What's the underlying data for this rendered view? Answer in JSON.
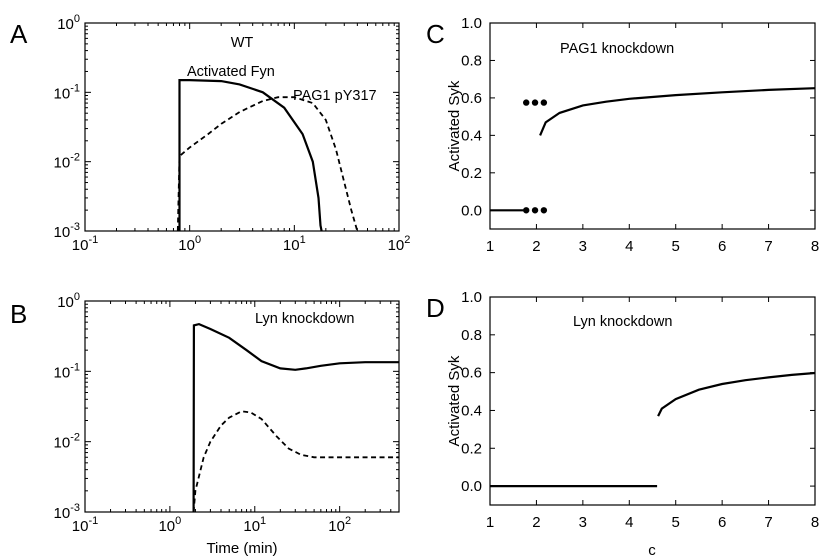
{
  "letters": [
    "A",
    "B",
    "C",
    "D"
  ],
  "x_title_left": "Time (min)",
  "x_title_right": "c",
  "chart_data": [
    {
      "id": "A",
      "type": "line",
      "title": "WT",
      "xscale": "log",
      "yscale": "log",
      "xlim": [
        0.1,
        100
      ],
      "ylim": [
        0.001,
        1
      ],
      "xtick_labels": [
        {
          "base": "10",
          "exp": "-1"
        },
        {
          "base": "10",
          "exp": "0"
        },
        {
          "base": "10",
          "exp": "1"
        },
        {
          "base": "10",
          "exp": "2"
        }
      ],
      "ytick_labels": [
        {
          "base": "10",
          "exp": "-3"
        },
        {
          "base": "10",
          "exp": "-2"
        },
        {
          "base": "10",
          "exp": "-1"
        },
        {
          "base": "10",
          "exp": "0"
        }
      ],
      "annotations": [
        "Activated Fyn",
        "PAG1 pY317"
      ],
      "series": [
        {
          "name": "Activated Fyn",
          "style": "solid",
          "x": [
            0.8,
            0.8,
            1,
            2,
            3,
            5,
            8,
            12,
            15,
            17,
            17.8,
            18.2
          ],
          "y": [
            0.001,
            0.15,
            0.15,
            0.145,
            0.13,
            0.1,
            0.06,
            0.025,
            0.01,
            0.003,
            0.0012,
            0.001
          ]
        },
        {
          "name": "PAG1 pY317",
          "style": "dashed",
          "x": [
            0.77,
            0.8,
            1,
            1.5,
            2,
            3,
            5,
            7,
            10,
            15,
            20,
            25,
            30,
            35,
            40
          ],
          "y": [
            0.001,
            0.012,
            0.016,
            0.025,
            0.035,
            0.052,
            0.075,
            0.085,
            0.085,
            0.07,
            0.04,
            0.015,
            0.005,
            0.002,
            0.001
          ]
        }
      ]
    },
    {
      "id": "B",
      "type": "line",
      "title": "Lyn knockdown",
      "xscale": "log",
      "yscale": "log",
      "xlim": [
        0.1,
        500
      ],
      "ylim": [
        0.001,
        1
      ],
      "xtick_labels": [
        {
          "base": "10",
          "exp": "-1"
        },
        {
          "base": "10",
          "exp": "0"
        },
        {
          "base": "10",
          "exp": "1"
        },
        {
          "base": "10",
          "exp": "2"
        }
      ],
      "ytick_labels": [
        {
          "base": "10",
          "exp": "-3"
        },
        {
          "base": "10",
          "exp": "-2"
        },
        {
          "base": "10",
          "exp": "-1"
        },
        {
          "base": "10",
          "exp": "0"
        }
      ],
      "xlabel": "Time (min)",
      "series": [
        {
          "style": "solid",
          "x": [
            1.9,
            1.92,
            2.2,
            3,
            5,
            8,
            12,
            20,
            30,
            40,
            60,
            100,
            200,
            500
          ],
          "y": [
            0.001,
            0.45,
            0.47,
            0.4,
            0.3,
            0.2,
            0.14,
            0.11,
            0.105,
            0.11,
            0.12,
            0.13,
            0.135,
            0.135
          ]
        },
        {
          "style": "dashed",
          "x": [
            1.9,
            2,
            2.5,
            3,
            4,
            5,
            7,
            9,
            12,
            18,
            25,
            35,
            50,
            100,
            500
          ],
          "y": [
            0.001,
            0.002,
            0.006,
            0.01,
            0.017,
            0.022,
            0.027,
            0.026,
            0.021,
            0.012,
            0.008,
            0.0065,
            0.006,
            0.006,
            0.006
          ]
        }
      ]
    },
    {
      "id": "C",
      "type": "line",
      "title": "PAG1 knockdown",
      "xscale": "linear",
      "yscale": "linear",
      "xlim": [
        1,
        8
      ],
      "ylim": [
        -0.1,
        1
      ],
      "xticks": [
        1,
        2,
        3,
        4,
        5,
        6,
        7,
        8
      ],
      "yticks": [
        0,
        0.2,
        0.4,
        0.6,
        0.8,
        1
      ],
      "ytick_labels": [
        "0.0",
        "0.2",
        "0.4",
        "0.6",
        "0.8",
        "1.0"
      ],
      "ylabel": "Activated Syk",
      "series": [
        {
          "style": "solid",
          "x": [
            1,
            1.72
          ],
          "y": [
            0,
            0
          ]
        },
        {
          "style": "solid",
          "x": [
            2.08,
            2.2,
            2.5,
            3,
            3.5,
            4,
            5,
            6,
            7,
            8
          ],
          "y": [
            0.4,
            0.47,
            0.52,
            0.56,
            0.58,
            0.595,
            0.615,
            0.63,
            0.643,
            0.652
          ]
        },
        {
          "style": "dots",
          "x": [
            1.78,
            1.97,
            2.16
          ],
          "y": [
            0.575,
            0.575,
            0.575
          ]
        },
        {
          "style": "dots",
          "x": [
            1.78,
            1.97,
            2.16
          ],
          "y": [
            0,
            0,
            0
          ]
        }
      ]
    },
    {
      "id": "D",
      "type": "line",
      "title": "Lyn knockdown",
      "xscale": "linear",
      "yscale": "linear",
      "xlim": [
        1,
        8
      ],
      "ylim": [
        -0.1,
        1
      ],
      "xticks": [
        1,
        2,
        3,
        4,
        5,
        6,
        7,
        8
      ],
      "yticks": [
        0,
        0.2,
        0.4,
        0.6,
        0.8,
        1
      ],
      "ytick_labels": [
        "0.0",
        "0.2",
        "0.4",
        "0.6",
        "0.8",
        "1.0"
      ],
      "ylabel": "Activated Syk",
      "xlabel": "c",
      "series": [
        {
          "style": "solid",
          "x": [
            1,
            4.6
          ],
          "y": [
            0,
            0
          ]
        },
        {
          "style": "solid",
          "x": [
            4.62,
            4.7,
            5,
            5.5,
            6,
            6.5,
            7,
            7.5,
            8
          ],
          "y": [
            0.37,
            0.41,
            0.46,
            0.51,
            0.54,
            0.56,
            0.575,
            0.588,
            0.598
          ]
        }
      ]
    }
  ]
}
